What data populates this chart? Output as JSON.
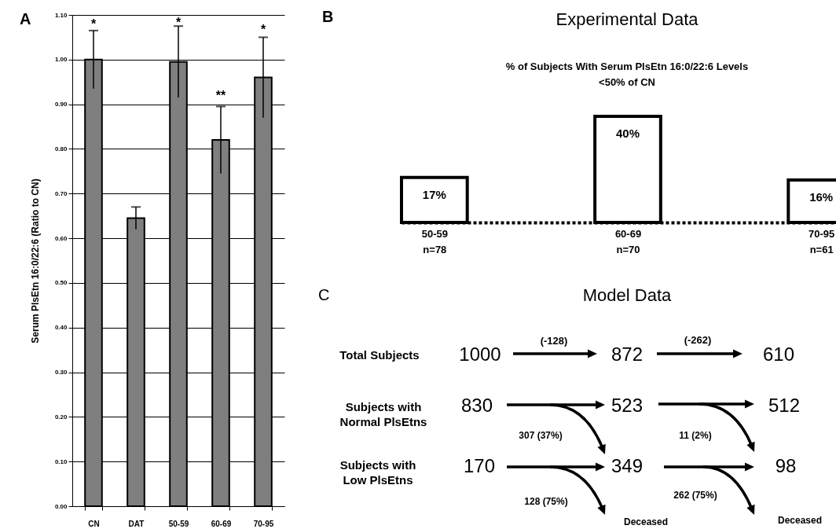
{
  "chart_data": [
    {
      "type": "bar",
      "categories": [
        "CN",
        "DAT",
        "50-59",
        "60-69",
        "70-95"
      ],
      "values": [
        1.0,
        0.645,
        0.995,
        0.82,
        0.96
      ],
      "errors": [
        0.065,
        0.025,
        0.08,
        0.075,
        0.09
      ],
      "color": "#7f7f7f",
      "ylabel": "Serum PlsEtn 16:0/22:6 (Ratio to CN)",
      "ylim": [
        0,
        1.1
      ],
      "yticks": [
        {
          "value": 0,
          "label": "0.00"
        },
        {
          "value": 0.1,
          "label": "0.10"
        },
        {
          "value": 0.2,
          "label": "0.20"
        },
        {
          "value": 0.3,
          "label": "0.30"
        },
        {
          "value": 0.4,
          "label": "0.40"
        },
        {
          "value": 0.5,
          "label": "0.50"
        },
        {
          "value": 0.6,
          "label": "0.60"
        },
        {
          "value": 0.7,
          "label": "0.70"
        },
        {
          "value": 0.8,
          "label": "0.80"
        },
        {
          "value": 0.9,
          "label": "0.90"
        },
        {
          "value": 1,
          "label": "1.00"
        },
        {
          "value": 1.1,
          "label": "1.10"
        }
      ],
      "grid": "y",
      "annotations": [
        "A",
        "*",
        "*",
        "**",
        "*"
      ]
    },
    {
      "type": "bar",
      "title": "Experimental Data",
      "subtitle": "% of Subjects With Serum PlsEtn 16:0/22:6 Levels\n<50% of CN",
      "categories": [
        "50-59\nn=78",
        "60-69\nn=70",
        "70-95\nn=61"
      ],
      "values": [
        17,
        40,
        16
      ],
      "value_labels": [
        "17%",
        "40%",
        "16%"
      ],
      "color": "#ffffff",
      "tick_labels": "x",
      "annotations": [
        "B"
      ]
    },
    {
      "type": "other",
      "title": "Model Data",
      "annotations": [
        "C",
        "Total Subjects",
        "1000",
        "(-128)",
        "872",
        "(-262)",
        "610",
        "Subjects with\nNormal PlsEtns",
        "830",
        "523",
        "512",
        "307 (37%)",
        "11 (2%)",
        "Subjects with\nLow PlsEtns",
        "170",
        "349",
        "98",
        "128 (75%)",
        "262 (75%)",
        "Deceased",
        "Deceased"
      ]
    }
  ]
}
